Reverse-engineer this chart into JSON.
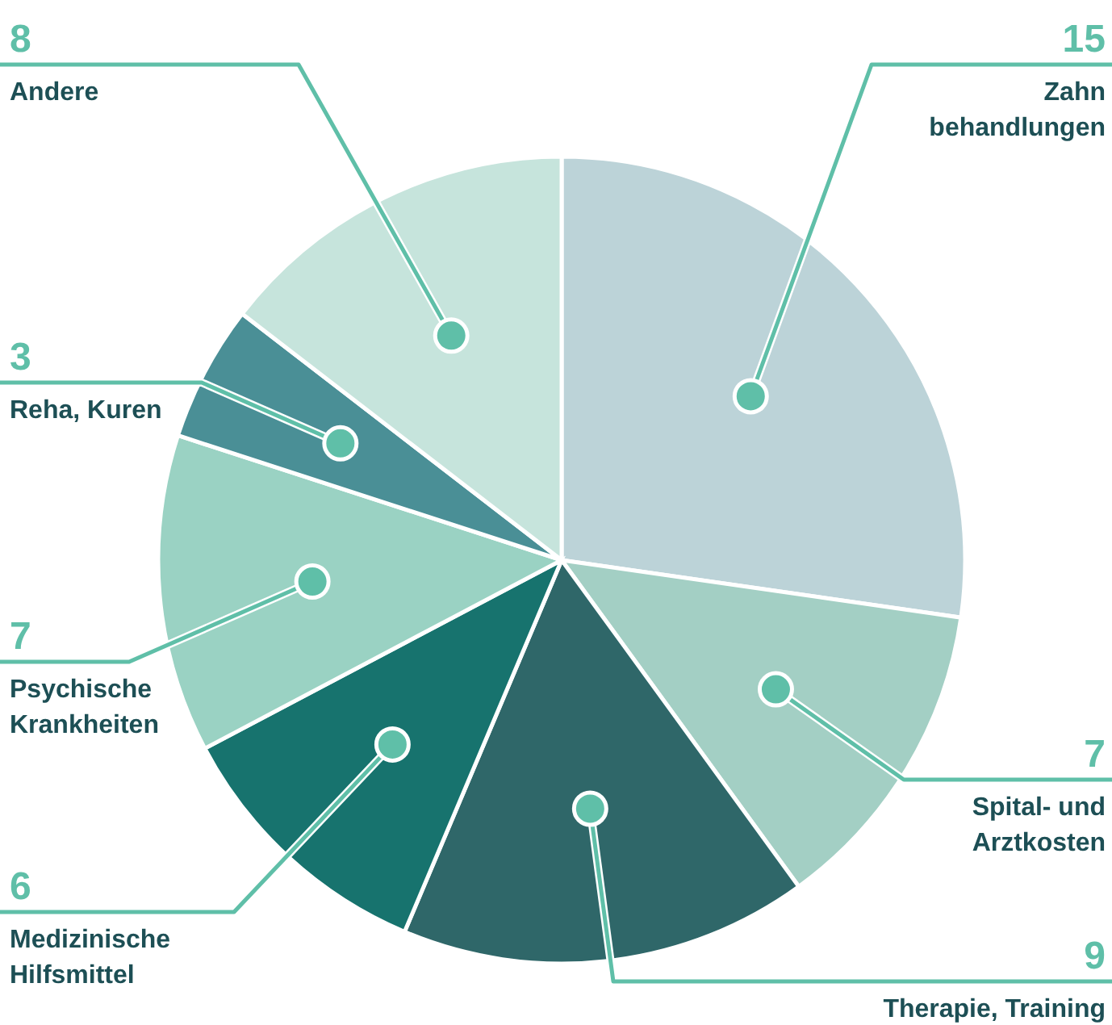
{
  "chart_data": {
    "type": "pie",
    "categories": [
      "Zahn\nbehandlungen",
      "Spital- und\nArztkosten",
      "Therapie, Training",
      "Medizinische\nHilfsmittel",
      "Psychische\nKrankheiten",
      "Reha, Kuren",
      "Andere"
    ],
    "values": [
      15,
      7,
      9,
      6,
      7,
      3,
      8
    ],
    "colors": [
      "#bcd3d8",
      "#a3cfc4",
      "#2f6769",
      "#17736e",
      "#9ad2c3",
      "#4a8f96",
      "#c6e4dc"
    ],
    "data_labels": true
  }
}
